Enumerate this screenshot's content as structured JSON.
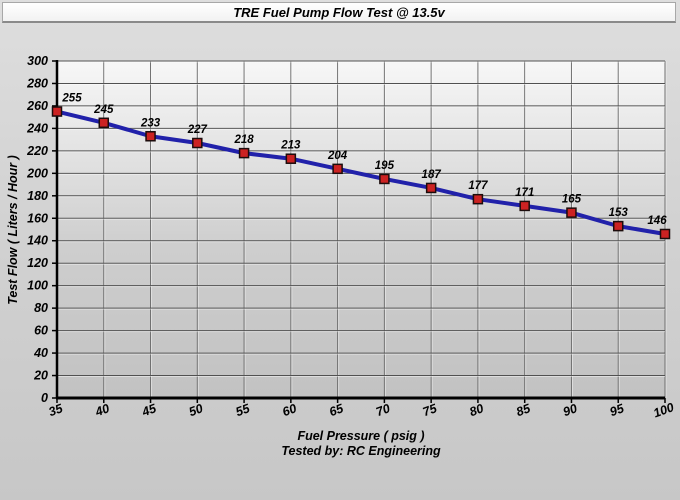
{
  "chart_data": {
    "type": "line",
    "title": "TRE Fuel Pump Flow Test @ 13.5v",
    "x": [
      35,
      40,
      45,
      50,
      55,
      60,
      65,
      70,
      75,
      80,
      85,
      90,
      95,
      100
    ],
    "series": [
      {
        "name": "Test Flow",
        "values": [
          255,
          245,
          233,
          227,
          218,
          213,
          204,
          195,
          187,
          177,
          171,
          165,
          153,
          146
        ]
      }
    ],
    "data_labels": [
      "255",
      "245",
      "233",
      "227",
      "218",
      "213",
      "204",
      "195",
      "187",
      "177",
      "171",
      "165",
      "153",
      "146"
    ],
    "xlabel": "Fuel Pressure ( psig )",
    "ylabel": "Test Flow ( Liters / Hour )",
    "footer": "Tested by: RC Engineering",
    "xlim": [
      35,
      100
    ],
    "ylim": [
      0,
      300
    ],
    "x_ticks": [
      35,
      40,
      45,
      50,
      55,
      60,
      65,
      70,
      75,
      80,
      85,
      90,
      95,
      100
    ],
    "y_ticks": [
      0,
      20,
      40,
      60,
      80,
      100,
      120,
      140,
      160,
      180,
      200,
      220,
      240,
      260,
      280,
      300
    ],
    "grid": true,
    "legend": "none",
    "colors": {
      "line": "#2121aa",
      "marker_fill": "#cc2222",
      "marker_border": "#1c0c0c",
      "grid_horizontal": "#515151",
      "grid_vertical": "#6e6e6e",
      "axis": "#000000"
    }
  }
}
